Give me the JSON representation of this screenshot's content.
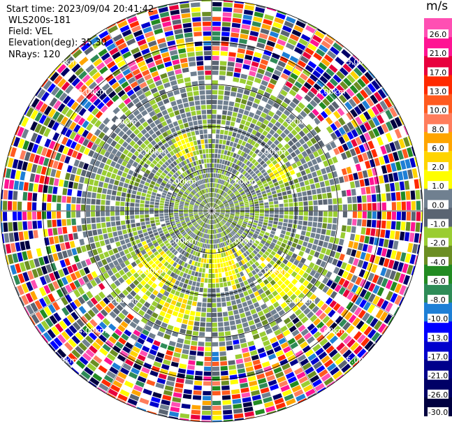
{
  "info": {
    "start_time": "Start time: 2023/09/04 20:41:42",
    "instrument": "WLS200s-181",
    "field": "Field: VEL",
    "elevation": "Elevation(deg): 35.30",
    "nrays": "NRays: 120"
  },
  "chart_data": {
    "type": "heatmap",
    "projection": "polar-ppi",
    "field": "VEL",
    "unit": "m/s",
    "nrays": 120,
    "range_ring_labels": [
      "1.00km",
      "2.00km",
      "3.00km",
      "4.00km",
      "5.00km"
    ],
    "range_rings_km": [
      1,
      2,
      3,
      4,
      5
    ],
    "max_range_km": 5.0,
    "colorbar": {
      "unit": "m/s",
      "tick_labels": [
        "26.0",
        "21.0",
        "17.0",
        "13.0",
        "10.0",
        "8.0",
        "6.0",
        "2.0",
        "1.0",
        "0.0",
        "-1.0",
        "-2.0",
        "-4.0",
        "-6.0",
        "-8.0",
        "-10.0",
        "-13.0",
        "-17.0",
        "-21.0",
        "-26.0",
        "-30.0"
      ],
      "colors": [
        "#ff4fb3",
        "#ff1493",
        "#e8003d",
        "#ff2a00",
        "#ff5a1f",
        "#ff7d5c",
        "#ffa500",
        "#ffd400",
        "#ffff00",
        "#708090",
        "#5a6472",
        "#9acd32",
        "#6b8e23",
        "#228b22",
        "#2e8b57",
        "#1e7fd6",
        "#0000ff",
        "#0000cd",
        "#00008b",
        "#000066",
        "#000040"
      ]
    },
    "regions": {
      "noise_start_km": 3.3,
      "inner_texture": "mix of gray (0 m/s), yellow-green (-2 m/s) and yellow (2 m/s) bins",
      "outer_texture": "random noise across full color scale"
    }
  }
}
